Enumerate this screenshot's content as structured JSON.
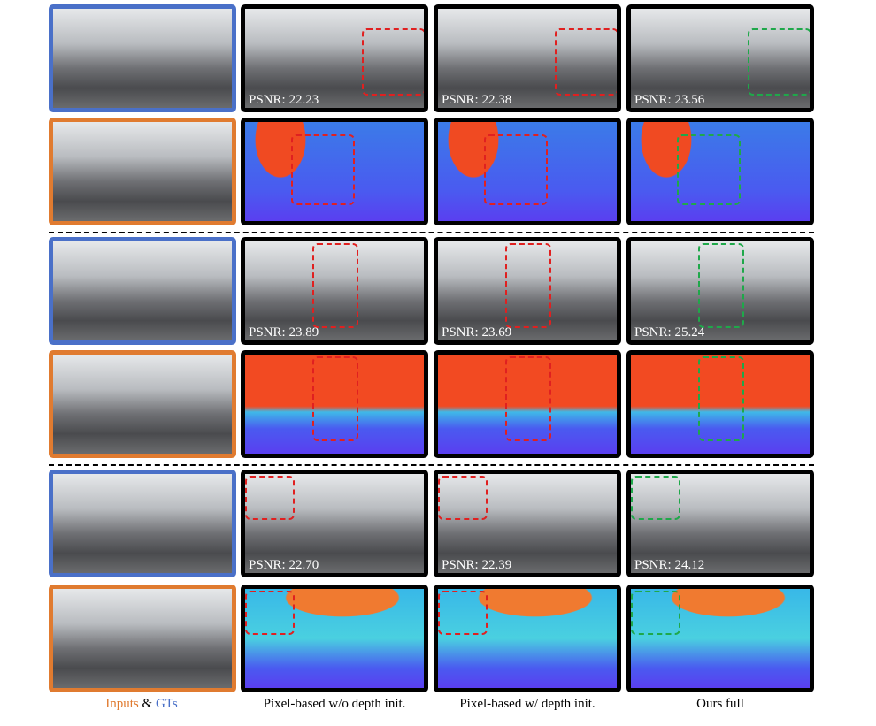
{
  "groups": [
    {
      "psnr": [
        "PSNR: 22.23",
        "PSNR: 22.38",
        "PSNR: 23.56"
      ]
    },
    {
      "psnr": [
        "PSNR: 23.89",
        "PSNR: 23.69",
        "PSNR: 25.24"
      ]
    },
    {
      "psnr": [
        "PSNR: 22.70",
        "PSNR: 22.39",
        "PSNR: 24.12"
      ]
    }
  ],
  "captions": {
    "inputs": "Inputs",
    "amp": "&",
    "gts": "GTs",
    "columns": [
      "Pixel-based w/o depth init.",
      "Pixel-based w/ depth init.",
      "Ours full"
    ]
  }
}
